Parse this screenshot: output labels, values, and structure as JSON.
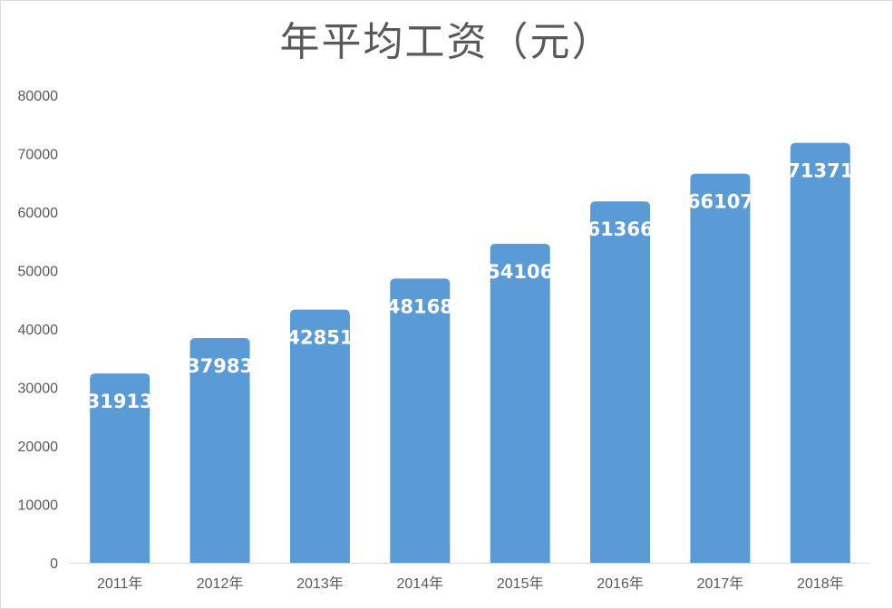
{
  "chart_data": {
    "type": "bar",
    "title": "年平均工资（元）",
    "xlabel": "",
    "ylabel": "",
    "categories": [
      "2011年",
      "2012年",
      "2013年",
      "2014年",
      "2015年",
      "2016年",
      "2017年",
      "2018年"
    ],
    "values": [
      31913,
      37983,
      42851,
      48168,
      54106,
      61366,
      66107,
      71371
    ],
    "data_labels": [
      "31913",
      "37983",
      "42851",
      "48168",
      "54106",
      "61366",
      "66107",
      "71371"
    ],
    "ylim": [
      0,
      80000
    ],
    "yticks": [
      "0",
      "10000",
      "20000",
      "30000",
      "40000",
      "50000",
      "60000",
      "70000",
      "80000"
    ],
    "grid": false,
    "legend": "none",
    "bar_color": "#5b9bd5",
    "axis_color": "#d9d9d9",
    "text_color": "#595959"
  }
}
